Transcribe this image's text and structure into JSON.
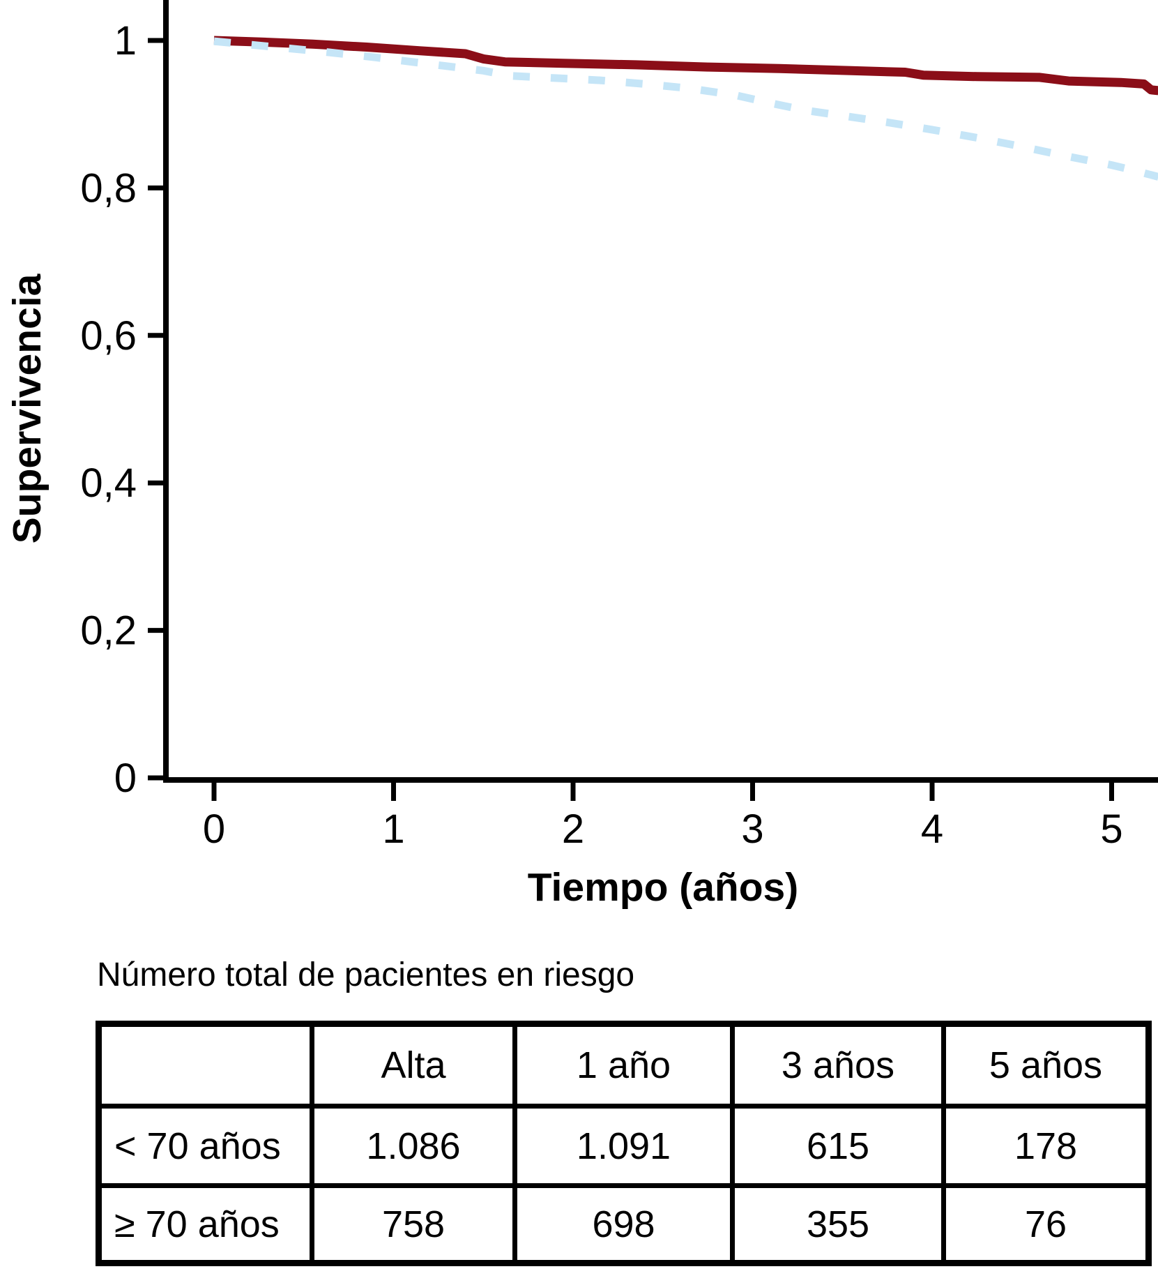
{
  "chart_data": {
    "type": "line",
    "title": "",
    "xlabel": "Tiempo (años)",
    "ylabel": "Supervivencia",
    "xlim": [
      0,
      5.26
    ],
    "ylim": [
      0,
      1.05
    ],
    "grid": false,
    "legend_position": "none",
    "x_ticks": [
      {
        "t": 0,
        "label": "0"
      },
      {
        "t": 1,
        "label": "1"
      },
      {
        "t": 2,
        "label": "2"
      },
      {
        "t": 3,
        "label": "3"
      },
      {
        "t": 4,
        "label": "4"
      },
      {
        "t": 5,
        "label": "5"
      }
    ],
    "y_ticks": [
      {
        "v": 1.0,
        "label": "1"
      },
      {
        "v": 0.8,
        "label": "0,8"
      },
      {
        "v": 0.6,
        "label": "0,6"
      },
      {
        "v": 0.4,
        "label": "0,4"
      },
      {
        "v": 0.2,
        "label": "0,2"
      },
      {
        "v": 0.0,
        "label": "0"
      }
    ],
    "series": [
      {
        "key": "under-70",
        "name": "< 70 años",
        "style": "solid",
        "color": "#8B0E18",
        "stroke_width": 13,
        "points": [
          [
            0.0,
            1.0
          ],
          [
            0.25,
            0.998
          ],
          [
            0.55,
            0.995
          ],
          [
            0.85,
            0.991
          ],
          [
            1.15,
            0.986
          ],
          [
            1.4,
            0.982
          ],
          [
            1.5,
            0.975
          ],
          [
            1.62,
            0.971
          ],
          [
            1.95,
            0.969
          ],
          [
            2.35,
            0.967
          ],
          [
            2.75,
            0.964
          ],
          [
            3.15,
            0.962
          ],
          [
            3.55,
            0.959
          ],
          [
            3.85,
            0.957
          ],
          [
            3.95,
            0.953
          ],
          [
            4.25,
            0.951
          ],
          [
            4.6,
            0.95
          ],
          [
            4.76,
            0.945
          ],
          [
            5.05,
            0.943
          ],
          [
            5.18,
            0.941
          ],
          [
            5.22,
            0.933
          ],
          [
            5.26,
            0.932
          ]
        ]
      },
      {
        "key": "70-plus",
        "name": "≥ 70 años",
        "style": "dashed",
        "color": "#C5E5F7",
        "stroke_width": 11,
        "points": [
          [
            0.0,
            0.999
          ],
          [
            0.3,
            0.992
          ],
          [
            0.6,
            0.985
          ],
          [
            0.9,
            0.977
          ],
          [
            1.2,
            0.968
          ],
          [
            1.5,
            0.959
          ],
          [
            1.65,
            0.952
          ],
          [
            1.9,
            0.949
          ],
          [
            2.15,
            0.946
          ],
          [
            2.4,
            0.941
          ],
          [
            2.65,
            0.935
          ],
          [
            2.9,
            0.926
          ],
          [
            3.1,
            0.915
          ],
          [
            3.3,
            0.905
          ],
          [
            3.5,
            0.898
          ],
          [
            3.75,
            0.889
          ],
          [
            4.0,
            0.879
          ],
          [
            4.25,
            0.868
          ],
          [
            4.5,
            0.856
          ],
          [
            4.75,
            0.843
          ],
          [
            5.0,
            0.831
          ],
          [
            5.12,
            0.824
          ],
          [
            5.26,
            0.815
          ]
        ]
      }
    ]
  },
  "risk_table": {
    "title": "Número total de pacientes en riesgo",
    "columns": [
      "",
      "Alta",
      "1 año",
      "3 años",
      "5 años"
    ],
    "rows": [
      {
        "label": "< 70 años",
        "values": [
          "1.086",
          "1.091",
          "615",
          "178"
        ]
      },
      {
        "label": "≥ 70 años",
        "values": [
          "758",
          "698",
          "355",
          "76"
        ]
      }
    ]
  },
  "colors": {
    "axis": "#000000",
    "under_70_curve": "#8B0E18",
    "70_plus_curve": "#C5E5F7",
    "background": "#FFFFFF"
  }
}
